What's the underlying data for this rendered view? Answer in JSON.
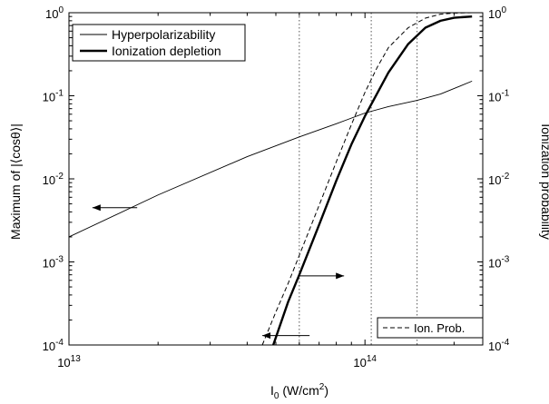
{
  "chart_data": {
    "type": "line",
    "xlabel": {
      "main": "I",
      "sub": "0",
      "rest": " (W/cm",
      "sup": "2",
      "end": ")"
    },
    "ylabel_left": "Maximum of |⟨cosθ⟩|",
    "ylabel_right": "Ionization probability",
    "x_scale": "log",
    "y_scale": "log",
    "xlim": [
      10000000000000.0,
      250000000000000.0
    ],
    "ylim": [
      0.0001,
      1
    ],
    "x_ticks": [
      {
        "value": 10000000000000.0,
        "base": "10",
        "exp": "13"
      },
      {
        "value": 100000000000000.0,
        "base": "10",
        "exp": "14"
      }
    ],
    "y_ticks": [
      {
        "value": 0.0001,
        "base": "10",
        "exp": "-4"
      },
      {
        "value": 0.001,
        "base": "10",
        "exp": "-3"
      },
      {
        "value": 0.01,
        "base": "10",
        "exp": "-2"
      },
      {
        "value": 0.1,
        "base": "10",
        "exp": "-1"
      },
      {
        "value": 1,
        "base": "10",
        "exp": "0"
      }
    ],
    "vertical_lines_x": [
      60000000000000.0,
      105000000000000.0,
      150000000000000.0
    ],
    "grid": false,
    "series": [
      {
        "name": "Hyperpolarizability",
        "axis": "left",
        "style": "thin-solid",
        "x": [
          10000000000000.0,
          20000000000000.0,
          40000000000000.0,
          60000000000000.0,
          80000000000000.0,
          100000000000000.0,
          120000000000000.0,
          150000000000000.0,
          180000000000000.0,
          230000000000000.0
        ],
        "y": [
          0.002,
          0.0064,
          0.0185,
          0.032,
          0.046,
          0.062,
          0.074,
          0.088,
          0.105,
          0.15
        ]
      },
      {
        "name": "Ionization depletion",
        "axis": "left",
        "style": "thick-solid",
        "x": [
          49000000000000.0,
          55000000000000.0,
          60000000000000.0,
          70000000000000.0,
          80000000000000.0,
          90000000000000.0,
          100000000000000.0,
          120000000000000.0,
          140000000000000.0,
          160000000000000.0,
          180000000000000.0,
          200000000000000.0,
          230000000000000.0
        ],
        "y": [
          0.0001,
          0.00033,
          0.0007,
          0.0028,
          0.0095,
          0.026,
          0.057,
          0.19,
          0.42,
          0.66,
          0.8,
          0.87,
          0.9
        ]
      },
      {
        "name": "Ion. Prob.",
        "axis": "right",
        "style": "dashed",
        "x": [
          45000000000000.0,
          50000000000000.0,
          55000000000000.0,
          60000000000000.0,
          70000000000000.0,
          80000000000000.0,
          90000000000000.0,
          100000000000000.0,
          110000000000000.0,
          120000000000000.0,
          140000000000000.0,
          160000000000000.0,
          180000000000000.0,
          200000000000000.0,
          230000000000000.0
        ],
        "y": [
          0.0001,
          0.00025,
          0.00055,
          0.0012,
          0.0048,
          0.016,
          0.045,
          0.11,
          0.22,
          0.38,
          0.66,
          0.86,
          0.96,
          0.99,
          1.0
        ]
      }
    ],
    "legend_top": {
      "placement": "top-left",
      "entries": [
        {
          "label": "Hyperpolarizability",
          "style": "thin-solid"
        },
        {
          "label": "Ionization depletion",
          "style": "thick-solid"
        }
      ]
    },
    "legend_bottom": {
      "placement": "bottom-right",
      "entries": [
        {
          "label": "Ion. Prob.",
          "style": "dashed"
        }
      ]
    },
    "arrows": [
      {
        "tail": [
          17000000000000.0,
          0.0045
        ],
        "head": [
          12000000000000.0,
          0.0045
        ],
        "target_axis": "left"
      },
      {
        "tail": [
          65000000000000.0,
          0.00013
        ],
        "head": [
          45000000000000.0,
          0.00013
        ],
        "target_axis": "left"
      },
      {
        "tail": [
          60000000000000.0,
          0.00068
        ],
        "head": [
          85000000000000.0,
          0.00068
        ],
        "target_axis": "right"
      }
    ]
  }
}
